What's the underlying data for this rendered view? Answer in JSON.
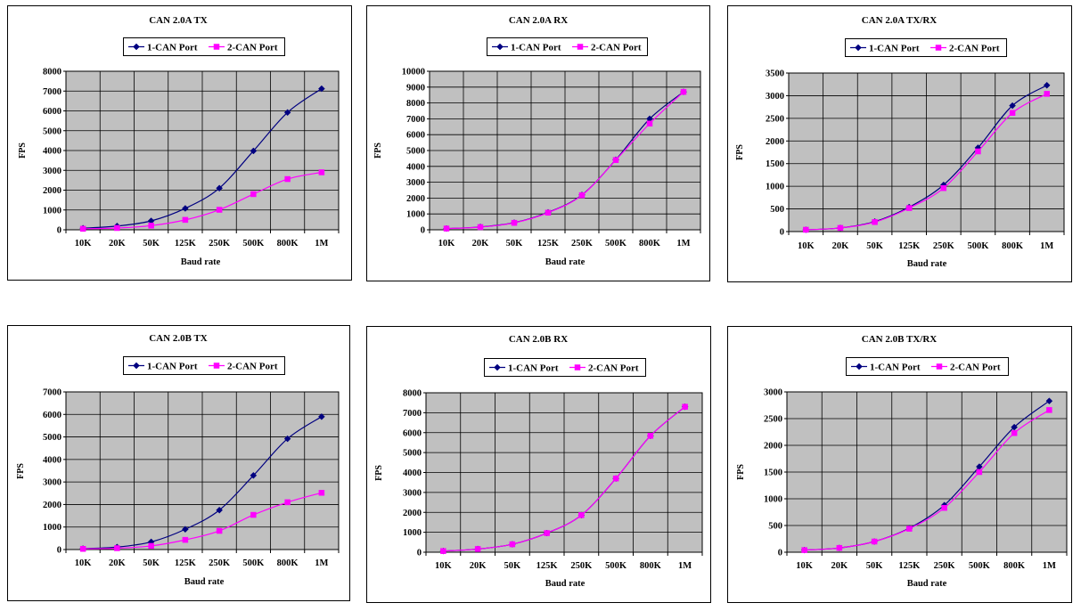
{
  "chart_data": [
    {
      "type": "line",
      "title": "CAN 2.0A TX",
      "xlabel": "Baud rate",
      "ylabel": "FPS",
      "categories": [
        "10K",
        "20K",
        "50K",
        "125K",
        "250K",
        "500K",
        "800K",
        "1M"
      ],
      "ylim": [
        0,
        8000
      ],
      "ystep": 1000,
      "grid": true,
      "legend_position": "top",
      "series": [
        {
          "name": "1-CAN Port",
          "color": "#000080",
          "marker": "diamond",
          "values": [
            80,
            190,
            450,
            1080,
            2100,
            3980,
            5920,
            7120
          ]
        },
        {
          "name": "2-CAN Port",
          "color": "#ff00ff",
          "marker": "square",
          "values": [
            50,
            90,
            210,
            500,
            1010,
            1800,
            2560,
            2900
          ]
        }
      ]
    },
    {
      "type": "line",
      "title": "CAN 2.0A RX",
      "xlabel": "Baud rate",
      "ylabel": "FPS",
      "categories": [
        "10K",
        "20K",
        "50K",
        "125K",
        "250K",
        "500K",
        "800K",
        "1M"
      ],
      "ylim": [
        0,
        10000
      ],
      "ystep": 1000,
      "grid": true,
      "legend_position": "top",
      "series": [
        {
          "name": "1-CAN Port",
          "color": "#000080",
          "marker": "diamond",
          "values": [
            80,
            180,
            450,
            1100,
            2200,
            4420,
            7000,
            8700
          ]
        },
        {
          "name": "2-CAN Port",
          "color": "#ff00ff",
          "marker": "square",
          "values": [
            80,
            170,
            440,
            1080,
            2180,
            4400,
            6700,
            8700
          ]
        }
      ]
    },
    {
      "type": "line",
      "title": "CAN 2.0A TX/RX",
      "xlabel": "Baud rate",
      "ylabel": "FPS",
      "categories": [
        "10K",
        "20K",
        "50K",
        "125K",
        "250K",
        "500K",
        "800K",
        "1M"
      ],
      "ylim": [
        0,
        3500
      ],
      "ystep": 500,
      "grid": true,
      "legend_position": "top",
      "series": [
        {
          "name": "1-CAN Port",
          "color": "#000080",
          "marker": "diamond",
          "values": [
            40,
            80,
            220,
            540,
            1030,
            1850,
            2780,
            3230
          ]
        },
        {
          "name": "2-CAN Port",
          "color": "#ff00ff",
          "marker": "square",
          "values": [
            40,
            80,
            210,
            520,
            960,
            1770,
            2620,
            3040
          ]
        }
      ]
    },
    {
      "type": "line",
      "title": "CAN 2.0B TX",
      "xlabel": "Baud rate",
      "ylabel": "FPS",
      "categories": [
        "10K",
        "20K",
        "50K",
        "125K",
        "250K",
        "500K",
        "800K",
        "1M"
      ],
      "ylim": [
        0,
        7000
      ],
      "ystep": 1000,
      "grid": true,
      "legend_position": "top",
      "series": [
        {
          "name": "1-CAN Port",
          "color": "#000080",
          "marker": "diamond",
          "values": [
            40,
            110,
            340,
            900,
            1750,
            3290,
            4920,
            5900
          ]
        },
        {
          "name": "2-CAN Port",
          "color": "#ff00ff",
          "marker": "square",
          "values": [
            30,
            60,
            160,
            430,
            830,
            1540,
            2100,
            2520
          ]
        }
      ]
    },
    {
      "type": "line",
      "title": "CAN 2.0B RX",
      "xlabel": "Baud rate",
      "ylabel": "FPS",
      "categories": [
        "10K",
        "20K",
        "50K",
        "125K",
        "250K",
        "500K",
        "800K",
        "1M"
      ],
      "ylim": [
        0,
        8000
      ],
      "ystep": 1000,
      "grid": true,
      "legend_position": "top",
      "series": [
        {
          "name": "1-CAN Port",
          "color": "#000080",
          "marker": "diamond",
          "values": [
            60,
            160,
            400,
            960,
            1860,
            3700,
            5840,
            7300
          ]
        },
        {
          "name": "2-CAN Port",
          "color": "#ff00ff",
          "marker": "square",
          "values": [
            60,
            160,
            400,
            960,
            1860,
            3700,
            5840,
            7300
          ]
        }
      ]
    },
    {
      "type": "line",
      "title": "CAN 2.0B TX/RX",
      "xlabel": "Baud rate",
      "ylabel": "FPS",
      "categories": [
        "10K",
        "20K",
        "50K",
        "125K",
        "250K",
        "500K",
        "800K",
        "1M"
      ],
      "ylim": [
        0,
        3000
      ],
      "ystep": 500,
      "grid": true,
      "legend_position": "top",
      "series": [
        {
          "name": "1-CAN Port",
          "color": "#000080",
          "marker": "diamond",
          "values": [
            40,
            80,
            200,
            450,
            880,
            1600,
            2340,
            2830
          ]
        },
        {
          "name": "2-CAN Port",
          "color": "#ff00ff",
          "marker": "square",
          "values": [
            40,
            80,
            200,
            440,
            830,
            1500,
            2230,
            2660
          ]
        }
      ]
    }
  ]
}
